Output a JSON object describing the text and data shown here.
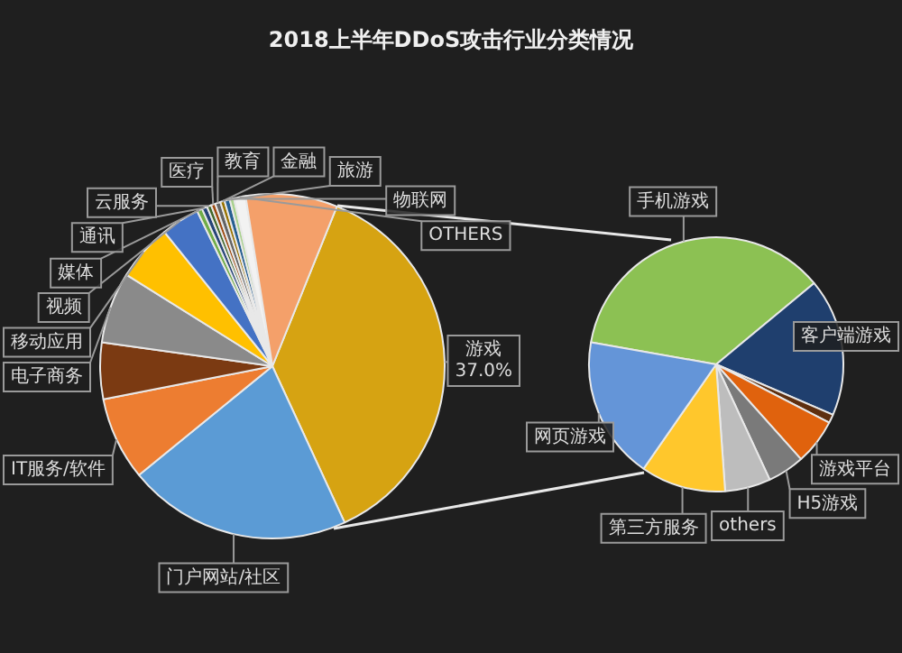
{
  "chart_data": [
    {
      "type": "pie",
      "title": "2018上半年DDoS攻击行业分类情况",
      "categories": [
        "游戏",
        "门户网站/社区",
        "IT服务/软件",
        null,
        "电子商务",
        "移动应用",
        "视频",
        "媒体",
        "通讯",
        "云服务",
        "医疗",
        "教育",
        "金融",
        "旅游",
        "物联网",
        "OTHERS",
        null
      ],
      "values": [
        37.0,
        21.0,
        7.8,
        5.3,
        6.7,
        5.3,
        3.6,
        0.5,
        0.5,
        0.4,
        0.4,
        0.5,
        0.4,
        0.5,
        0.4,
        1.1,
        8.6
      ],
      "colors": [
        "#d6a312",
        "#5b9bd5",
        "#ed7d31",
        "#7b3a12",
        "#8a8a8a",
        "#ffc000",
        "#4472c4",
        "#70ad47",
        "#264478",
        "#43682b",
        "#9e480e",
        "#636363",
        "#997300",
        "#255e91",
        "#a9d18e",
        "#f2f2f2",
        "#f4a06a"
      ],
      "value_labels": [
        "37.0%",
        null,
        null,
        null,
        null,
        null,
        null,
        null,
        null,
        null,
        null,
        null,
        null,
        null,
        null,
        null,
        null
      ]
    },
    {
      "type": "pie",
      "categories": [
        "手机游戏",
        "客户端游戏",
        null,
        "游戏平台",
        "H5游戏",
        "others",
        "第三方服务",
        "网页游戏"
      ],
      "values": [
        36.2,
        17.5,
        1.1,
        5.8,
        4.7,
        5.8,
        10.8,
        18.1
      ],
      "colors": [
        "#8cc153",
        "#1f3f6e",
        "#5e2f0f",
        "#e0620d",
        "#7a7a7a",
        "#bdbdbd",
        "#ffc72c",
        "#6495d8"
      ]
    }
  ]
}
